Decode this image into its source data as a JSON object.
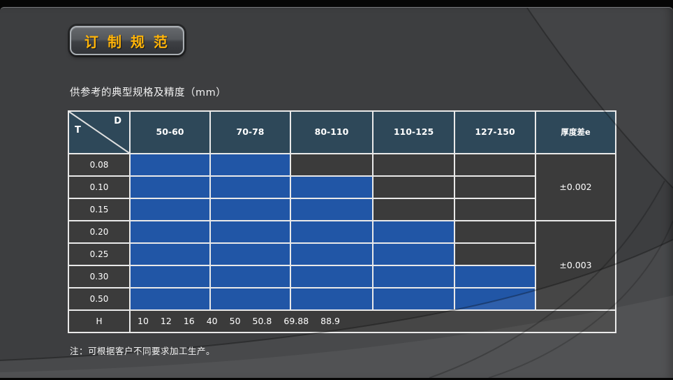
{
  "slide": {
    "title": "订 制 规 范",
    "subtitle": "供参考的典型规格及精度（mm）",
    "note": "注：可根据客户不同要求加工生产。"
  },
  "table": {
    "corner_top_right": "D",
    "corner_bottom_left": "T",
    "columns": [
      "50-60",
      "70-78",
      "80-110",
      "110-125",
      "127-150"
    ],
    "tolerance_header": "厚度差e",
    "rows": [
      {
        "label": "0.08",
        "filled": [
          true,
          true,
          false,
          false,
          false
        ]
      },
      {
        "label": "0.10",
        "filled": [
          true,
          true,
          true,
          false,
          false
        ]
      },
      {
        "label": "0.15",
        "filled": [
          true,
          true,
          true,
          false,
          false
        ]
      },
      {
        "label": "0.20",
        "filled": [
          true,
          true,
          true,
          true,
          false
        ]
      },
      {
        "label": "0.25",
        "filled": [
          true,
          true,
          true,
          true,
          false
        ]
      },
      {
        "label": "0.30",
        "filled": [
          true,
          true,
          true,
          true,
          true
        ]
      },
      {
        "label": "0.50",
        "filled": [
          true,
          true,
          true,
          true,
          true
        ]
      }
    ],
    "tolerance_groups": [
      {
        "value": "±0.002",
        "first_row": "0.08",
        "last_row": "0.15"
      },
      {
        "value": "±0.003",
        "first_row": "0.20",
        "last_row": "0.50"
      }
    ],
    "h_row": {
      "label": "H",
      "values": [
        "10",
        "12",
        "16",
        "40",
        "50",
        "50.8",
        "69.88",
        "88.9"
      ]
    }
  },
  "colors": {
    "slide_background": "#3d3e40",
    "header_cell": "#2e4859",
    "filled_cell": "#2156a6",
    "empty_cell": "#3b3b3b",
    "grid_border": "#e9e9e9",
    "title_text": "#ffb409"
  }
}
